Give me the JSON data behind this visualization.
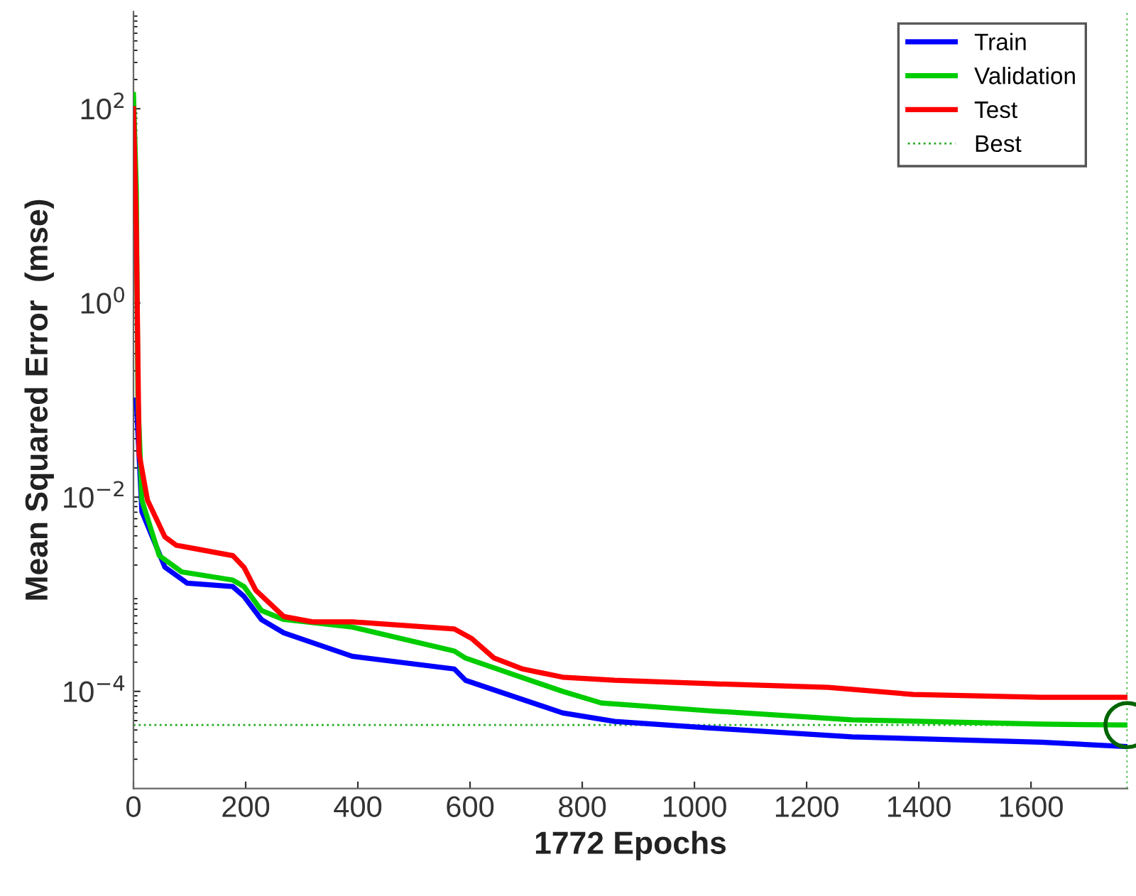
{
  "chart_data": {
    "type": "line",
    "xlabel": "1772 Epochs",
    "ylabel": "Mean Squared Error  (mse)",
    "log": "y",
    "xlim": [
      0,
      1772
    ],
    "xticks": [
      0,
      200,
      400,
      600,
      800,
      1000,
      1200,
      1400,
      1600
    ],
    "ylim": [
      1e-05,
      1000
    ],
    "yticks": [
      {
        "value": 0.0001,
        "label": "10$^{−4}$"
      },
      {
        "value": 0.01,
        "label": "10$^{−2}$"
      },
      {
        "value": 1,
        "label": "10$^{0}$"
      },
      {
        "value": 100,
        "label": "10$^{2}$"
      }
    ],
    "grid": false,
    "legend": "top right",
    "line_style": "solid",
    "marker": "none",
    "series": [
      {
        "name": "Train",
        "color": "#0000ff",
        "x": [
          5,
          15,
          56,
          96,
          177,
          197,
          228,
          268,
          390,
          572,
          592,
          765,
          858,
          1028,
          1281,
          1618,
          1772
        ],
        "values": [
          0.1,
          0.0071,
          0.0019,
          0.0013,
          0.0012,
          0.00095,
          0.00055,
          0.0004,
          0.00023,
          0.00017,
          0.00013,
          6e-05,
          4.9e-05,
          4.2e-05,
          3.4e-05,
          3e-05,
          2.7e-05
        ]
      },
      {
        "name": "Validation",
        "color": "#00cc00",
        "x": [
          0,
          5,
          8,
          15,
          46,
          86,
          177,
          197,
          228,
          268,
          390,
          572,
          592,
          765,
          834,
          1028,
          1281,
          1618,
          1772
        ],
        "values": [
          140,
          15,
          0.1,
          0.0093,
          0.0025,
          0.0017,
          0.0014,
          0.0012,
          0.00068,
          0.00055,
          0.00046,
          0.00026,
          0.00022,
          0.0001,
          7.6e-05,
          6.3e-05,
          5.1e-05,
          4.6e-05,
          4.5e-05
        ]
      },
      {
        "name": "Test",
        "color": "#ff0000",
        "x": [
          0,
          5,
          10,
          25,
          56,
          76,
          177,
          197,
          218,
          268,
          319,
          390,
          572,
          603,
          643,
          694,
          765,
          858,
          1028,
          1238,
          1390,
          1618,
          1772
        ],
        "values": [
          100,
          5.9,
          0.028,
          0.0093,
          0.0039,
          0.0032,
          0.0025,
          0.0019,
          0.0011,
          0.00059,
          0.00052,
          0.00052,
          0.00044,
          0.00035,
          0.00022,
          0.00017,
          0.00014,
          0.00013,
          0.00012,
          0.00011,
          9.3e-05,
          8.7e-05,
          8.7e-05
        ]
      },
      {
        "type": "scatter",
        "marker": "circle",
        "color": "#006400",
        "x": [
          1772
        ],
        "values": [
          4.5e-05
        ]
      }
    ],
    "ref_lines": [
      {
        "axis": "y",
        "value": 4.5e-05,
        "label": "Best",
        "color": "#22aa22",
        "line_style": "dotted"
      },
      {
        "axis": "x",
        "value": 1772,
        "color": "#22aa22",
        "line_style": "dotted"
      }
    ]
  }
}
